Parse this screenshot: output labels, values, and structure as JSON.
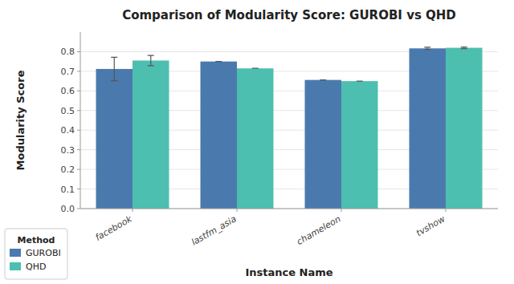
{
  "chart_data": {
    "type": "bar",
    "title": "Comparison of Modularity Score: GUROBI vs QHD",
    "xlabel": "Instance Name",
    "ylabel": "Modularity Score",
    "categories": [
      "facebook",
      "lastfm_asia",
      "chameleon",
      "tvshow"
    ],
    "series": [
      {
        "name": "GUROBI",
        "color": "#4a7aad",
        "values": [
          0.712,
          0.75,
          0.656,
          0.817
        ],
        "errors": [
          0.06,
          0.0,
          0.0,
          0.006
        ]
      },
      {
        "name": "QHD",
        "color": "#4dbfb0",
        "values": [
          0.755,
          0.715,
          0.65,
          0.82
        ],
        "errors": [
          0.026,
          0.0,
          0.0,
          0.004
        ]
      }
    ],
    "ylim": [
      0.0,
      0.9
    ],
    "yticks": [
      {
        "value": 0.0,
        "label": "0.0"
      },
      0.1,
      0.2,
      0.3,
      0.4,
      0.5,
      0.6,
      0.7,
      0.8
    ],
    "grid": true,
    "legend": "lower left",
    "legend_title": "Method"
  }
}
